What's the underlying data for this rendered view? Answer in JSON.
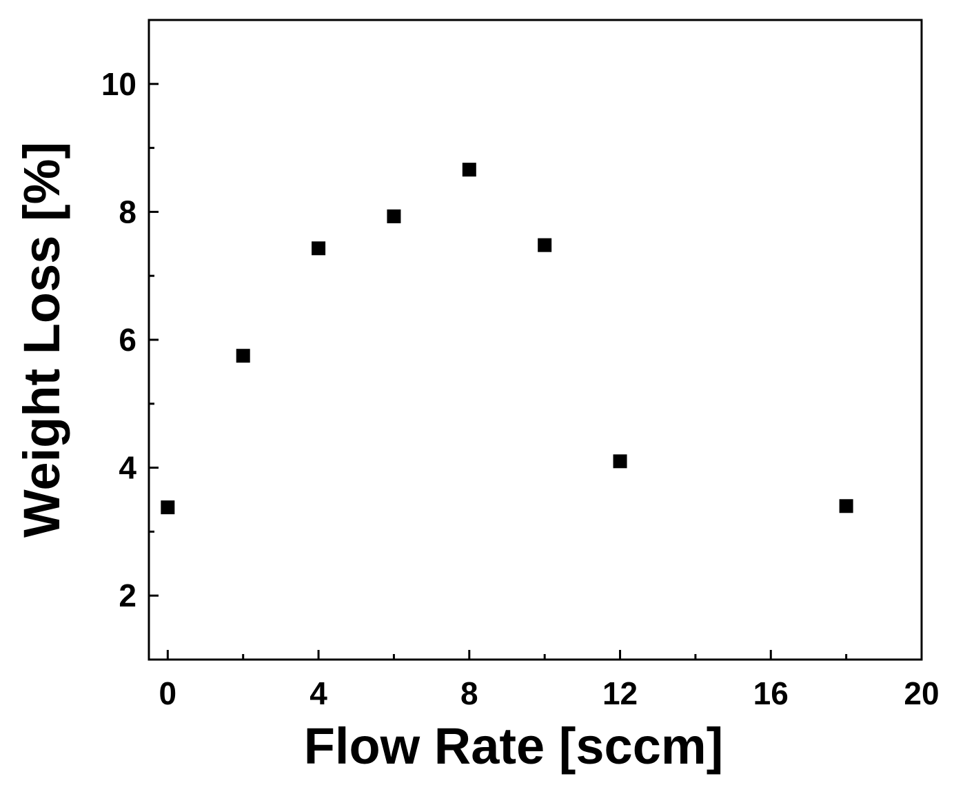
{
  "chart_data": {
    "type": "scatter",
    "title": "",
    "xlabel": "Flow Rate [sccm]",
    "ylabel": "Weight Loss [%]",
    "xlim": [
      -0.5,
      20
    ],
    "ylim": [
      1,
      11
    ],
    "x_major_ticks": [
      0,
      4,
      8,
      12,
      16,
      20
    ],
    "x_tick_labels": [
      "0",
      "4",
      "8",
      "12",
      "16",
      "20"
    ],
    "x_minor_ticks": [
      2,
      6,
      10,
      14,
      18
    ],
    "y_major_ticks": [
      2,
      4,
      6,
      8,
      10
    ],
    "y_tick_labels": [
      "2",
      "4",
      "6",
      "8",
      "10"
    ],
    "y_minor_ticks": [
      3,
      5,
      7,
      9
    ],
    "grid": false,
    "legend": "none",
    "marker": "square",
    "marker_color": "#000000",
    "series": [
      {
        "x": [
          0,
          2,
          4,
          6,
          8,
          10,
          12,
          18
        ],
        "y": [
          3.38,
          5.75,
          7.43,
          7.93,
          8.66,
          7.48,
          4.1,
          3.4
        ]
      }
    ]
  }
}
